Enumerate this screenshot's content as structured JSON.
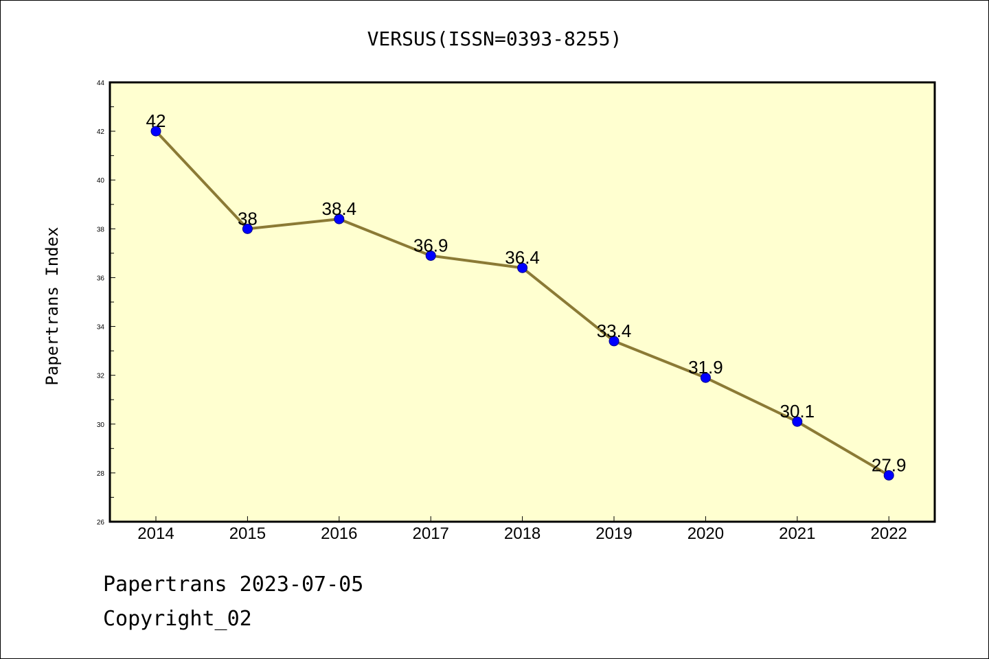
{
  "chart_data": {
    "type": "line",
    "title": "VERSUS(ISSN=0393-8255)",
    "ylabel": "Papertrans Index",
    "xlabel": "",
    "categories": [
      "2014",
      "2015",
      "2016",
      "2017",
      "2018",
      "2019",
      "2020",
      "2021",
      "2022"
    ],
    "series": [
      {
        "values": [
          42,
          38,
          38.4,
          36.9,
          36.4,
          33.4,
          31.9,
          30.1,
          27.9
        ]
      }
    ],
    "data_labels": [
      "42",
      "38",
      "38.4",
      "36.9",
      "36.4",
      "33.4",
      "31.9",
      "30.1",
      "27.9"
    ],
    "ylim": [
      26,
      44
    ],
    "yticks": [
      26,
      28,
      30,
      32,
      34,
      36,
      38,
      40,
      42,
      44
    ],
    "grid": false,
    "legend": "none",
    "colors": {
      "plot_background": "#ffffd0",
      "line": "#8b7a35",
      "marker": "#0000ff"
    }
  },
  "footer": {
    "line1": "Papertrans 2023-07-05",
    "line2": "Copyright_02"
  }
}
